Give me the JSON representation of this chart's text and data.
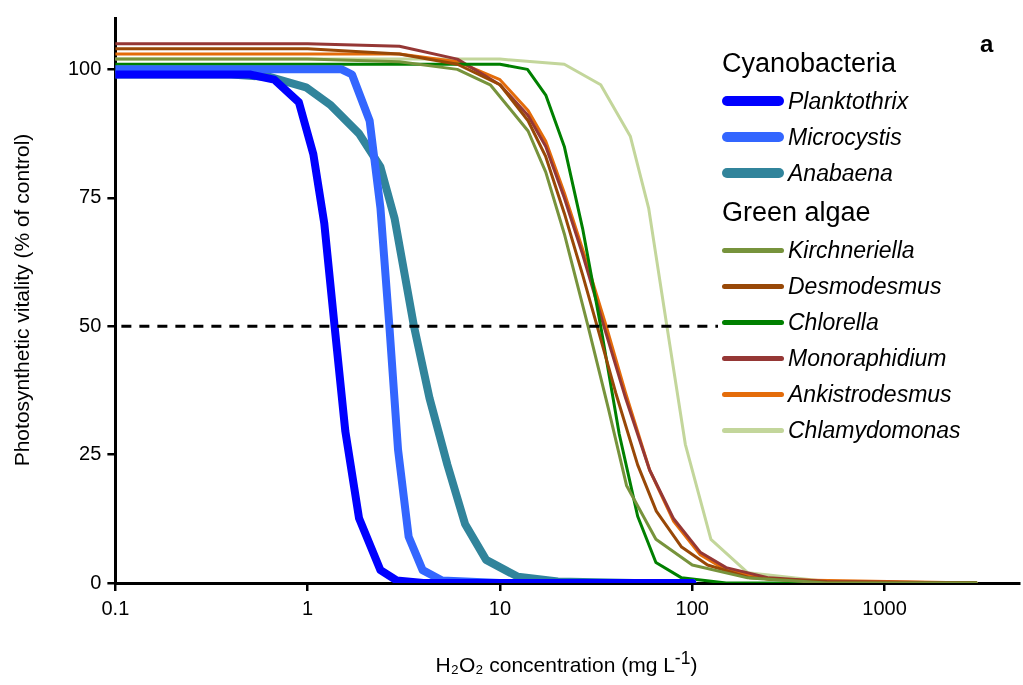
{
  "chart_data": {
    "type": "line",
    "xlabel": "H₂O₂ concentration (mg L$^{-1}$)",
    "ylabel": "Photosynthetic vitality (% of control)",
    "legend_title": "Cyanobacteria",
    "annotations": [
      "Green algae",
      "a"
    ],
    "log": "x",
    "grid": false,
    "legend": "top right",
    "marker": "none",
    "xlim": [
      0.1,
      5000
    ],
    "xticks": [
      0.1,
      1,
      10,
      100,
      1000
    ],
    "ylim": [
      0,
      110
    ],
    "yticks": [
      0,
      25,
      50,
      75,
      100
    ],
    "ref_lines": [
      {
        "axis": "y",
        "value": 50,
        "color": "#000000",
        "line_style": "dashed"
      }
    ],
    "series": [
      {
        "name": "Planktothrix",
        "color": "#0000ff",
        "x": [
          0.1,
          0.5,
          0.67,
          0.9,
          1.07,
          1.22,
          1.38,
          1.57,
          1.85,
          2.39,
          2.9,
          4,
          10,
          100
        ],
        "values": [
          99,
          99,
          98,
          93.6,
          83.5,
          70,
          50,
          29.5,
          12.6,
          2.5,
          0.5,
          0,
          0,
          0
        ]
      },
      {
        "name": "Microcystis",
        "color": "#3366ff",
        "x": [
          0.1,
          1,
          1.5,
          1.7,
          2.1,
          2.39,
          2.66,
          2.95,
          3.35,
          3.96,
          5,
          10,
          100
        ],
        "values": [
          100,
          100,
          100,
          99,
          90,
          73,
          50,
          26,
          9,
          2.5,
          0.5,
          0,
          0
        ]
      },
      {
        "name": "Anabaena",
        "color": "#31849b",
        "x": [
          0.1,
          0.4,
          0.64,
          0.98,
          1.32,
          1.85,
          2.39,
          2.83,
          3.57,
          4.3,
          5.33,
          6.58,
          8.47,
          12.4,
          20,
          50,
          100
        ],
        "values": [
          99,
          99,
          98.5,
          96.5,
          93,
          87.5,
          81,
          71,
          50,
          36,
          23,
          11.5,
          4.5,
          1.2,
          0.3,
          0,
          0
        ]
      },
      {
        "name": "Kirchneriella",
        "color": "#77933c",
        "x": [
          0.1,
          1,
          3,
          6,
          8.9,
          14,
          17.3,
          21.6,
          28.7,
          36.6,
          45.5,
          64.7,
          100,
          194,
          500,
          3000
        ],
        "values": [
          102,
          102,
          101.5,
          100,
          97,
          88,
          80,
          68,
          50,
          34,
          19,
          8.5,
          3.5,
          1,
          0,
          0
        ]
      },
      {
        "name": "Desmodesmus",
        "color": "#984807",
        "x": [
          0.1,
          1,
          3,
          6,
          10,
          14,
          17.3,
          21.6,
          26.9,
          32,
          40,
          52,
          65,
          88,
          120,
          200,
          500,
          3000
        ],
        "values": [
          104,
          104,
          103,
          101,
          97,
          90,
          83,
          72,
          60,
          50,
          37,
          23,
          14,
          7,
          3.5,
          1,
          0.2,
          0
        ]
      },
      {
        "name": "Chlorella",
        "color": "#008000",
        "x": [
          0.1,
          1,
          10,
          13.9,
          17.3,
          21.6,
          26.9,
          33.4,
          41.7,
          52,
          64.7,
          88,
          150,
          500,
          3000
        ],
        "values": [
          101,
          101,
          101,
          100,
          95,
          85,
          69,
          50,
          29,
          13,
          4,
          1,
          0,
          0,
          0
        ]
      },
      {
        "name": "Monoraphidium",
        "color": "#953735",
        "x": [
          0.1,
          1,
          3,
          6,
          10,
          14,
          17.3,
          21.6,
          26.9,
          34.7,
          45,
          60,
          80,
          110,
          150,
          250,
          500,
          3000
        ],
        "values": [
          105,
          105,
          104.5,
          102,
          97,
          91,
          85,
          75,
          64,
          50,
          36,
          22,
          12.5,
          6,
          3,
          1,
          0.3,
          0
        ]
      },
      {
        "name": "Ankistrodesmus",
        "color": "#e46c0a",
        "x": [
          0.1,
          1,
          3,
          6,
          10,
          14,
          17.3,
          21.6,
          26.9,
          35.7,
          45,
          60,
          80,
          110,
          150,
          250,
          3000
        ],
        "values": [
          103,
          103,
          103,
          101.5,
          98,
          92,
          86,
          76,
          65,
          50,
          37,
          22,
          12,
          5.5,
          2.5,
          0.7,
          0
        ]
      },
      {
        "name": "Chlamydomonas",
        "color": "#c3d69b",
        "x": [
          0.1,
          1,
          10,
          21.6,
          33.4,
          47.6,
          59.3,
          73.8,
          92,
          125,
          194,
          500,
          3000
        ],
        "values": [
          102,
          102,
          102,
          101,
          97,
          87,
          73,
          50,
          27,
          8.5,
          2,
          0.3,
          0
        ]
      }
    ]
  }
}
